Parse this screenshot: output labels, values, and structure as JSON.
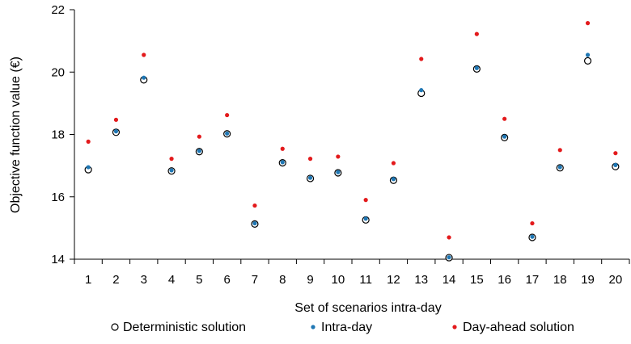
{
  "chart_data": {
    "type": "scatter",
    "xlabel": "Set of scenarios intra-day",
    "ylabel": "Objective function value (€)",
    "ylim": [
      14,
      22
    ],
    "yticks": [
      14,
      16,
      18,
      20,
      22
    ],
    "categories": [
      "1",
      "2",
      "3",
      "4",
      "5",
      "6",
      "7",
      "8",
      "9",
      "10",
      "11",
      "12",
      "13",
      "14",
      "15",
      "16",
      "17",
      "18",
      "19",
      "20"
    ],
    "grid": false,
    "legend_position": "bottom",
    "series": [
      {
        "name": "Deterministic solution",
        "marker": "open-circle",
        "color": "#000000",
        "values": [
          16.87,
          18.07,
          19.75,
          16.83,
          17.45,
          18.02,
          15.13,
          17.09,
          16.59,
          16.77,
          15.26,
          16.53,
          19.32,
          14.05,
          20.1,
          17.9,
          14.7,
          16.93,
          20.36,
          16.97
        ]
      },
      {
        "name": "Intra-day",
        "marker": "dot",
        "color": "#1f77b4",
        "values": [
          16.95,
          18.1,
          19.82,
          16.85,
          17.47,
          18.03,
          15.15,
          17.11,
          16.61,
          16.79,
          15.3,
          16.57,
          19.42,
          14.06,
          20.13,
          17.93,
          14.72,
          16.95,
          20.55,
          17.02
        ]
      },
      {
        "name": "Day-ahead solution",
        "marker": "dot",
        "color": "#e31a1c",
        "values": [
          17.77,
          18.47,
          20.55,
          17.22,
          17.93,
          18.62,
          15.72,
          17.54,
          17.22,
          17.29,
          15.9,
          17.08,
          20.42,
          14.7,
          21.22,
          18.5,
          15.15,
          17.5,
          21.57,
          17.4
        ]
      }
    ]
  }
}
